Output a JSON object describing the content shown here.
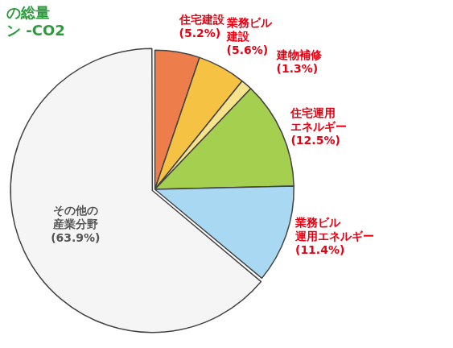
{
  "chart_data": {
    "type": "pie",
    "title": [
      "の総量",
      "ン -CO2"
    ],
    "categories": [
      "住宅建設",
      "業務ビル建設",
      "建物補修",
      "住宅運用エネルギー",
      "業務ビル運用エネルギー",
      "その他の産業分野"
    ],
    "values": [
      5.2,
      5.6,
      1.3,
      12.5,
      11.4,
      63.9
    ],
    "value_labels": [
      "(5.2%)",
      "(5.6%)",
      "(1.3%)",
      "(12.5%)",
      "(11.4%)",
      "(63.9%)"
    ],
    "colors": [
      "#ee7d4c",
      "#f6c244",
      "#f7e38c",
      "#a5cf4f",
      "#a9d9f2",
      "#f5f5f5"
    ],
    "data_labels": true
  }
}
